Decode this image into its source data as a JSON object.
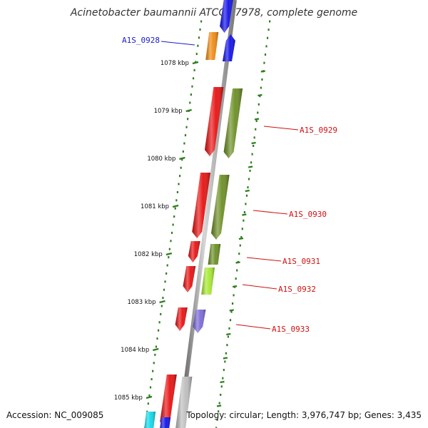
{
  "title": "Acinetobacter baumannii ATCC 17978, complete genome",
  "accession_text": "Accession: NC_009085",
  "summary_text": "Topology: circular; Length: 3,976,747 bp; Genes: 3,435",
  "colors": {
    "backbone": "#8a8a8a",
    "tick": "#2e7d1e",
    "label_blue": "#1a1ad0",
    "label_red": "#d01010"
  },
  "scale_ticks": [
    {
      "label": "1078 kbp",
      "kbp": 1078
    },
    {
      "label": "1079 kbp",
      "kbp": 1079
    },
    {
      "label": "1080 kbp",
      "kbp": 1080
    },
    {
      "label": "1081 kbp",
      "kbp": 1081
    },
    {
      "label": "1082 kbp",
      "kbp": 1082
    },
    {
      "label": "1083 kbp",
      "kbp": 1083
    },
    {
      "label": "1084 kbp",
      "kbp": 1084
    },
    {
      "label": "1085 kbp",
      "kbp": 1085
    }
  ],
  "gene_labels": [
    {
      "text": "A1S_0928",
      "color": "#1a1ad0"
    },
    {
      "text": "A1S_0929",
      "color": "#d01010"
    },
    {
      "text": "A1S_0930",
      "color": "#d01010"
    },
    {
      "text": "A1S_0931",
      "color": "#d01010"
    },
    {
      "text": "A1S_0932",
      "color": "#d01010"
    },
    {
      "text": "A1S_0933",
      "color": "#d01010"
    }
  ],
  "features": [
    {
      "name": "cds-top-blue",
      "color": "#1010e8"
    },
    {
      "name": "gene-A1S_0928-blue",
      "color": "#1010e8"
    },
    {
      "name": "gene-A1S_0928-orange",
      "color": "#f08a10"
    },
    {
      "name": "gene-A1S_0929-red",
      "color": "#e81010"
    },
    {
      "name": "gene-A1S_0929-olive",
      "color": "#6b8e23"
    },
    {
      "name": "gene-A1S_0930-red",
      "color": "#e81010"
    },
    {
      "name": "gene-A1S_0930-olive",
      "color": "#6b8e23"
    },
    {
      "name": "gene-A1S_0931-red",
      "color": "#e81010"
    },
    {
      "name": "gene-A1S_0931-olive",
      "color": "#6b8e23"
    },
    {
      "name": "gene-A1S_0932-red",
      "color": "#e81010"
    },
    {
      "name": "gene-A1S_0932-lime",
      "color": "#a6e830"
    },
    {
      "name": "gene-A1S_0933-red",
      "color": "#e81010"
    },
    {
      "name": "gene-A1S_0933-purple",
      "color": "#7a68d8"
    },
    {
      "name": "cds-lower-red",
      "color": "#e81010"
    },
    {
      "name": "cds-lower-gray",
      "color": "#bdbdbd"
    },
    {
      "name": "cds-bottom-cyan",
      "color": "#10d8e8"
    },
    {
      "name": "cds-bottom-blue",
      "color": "#1010e8"
    }
  ]
}
